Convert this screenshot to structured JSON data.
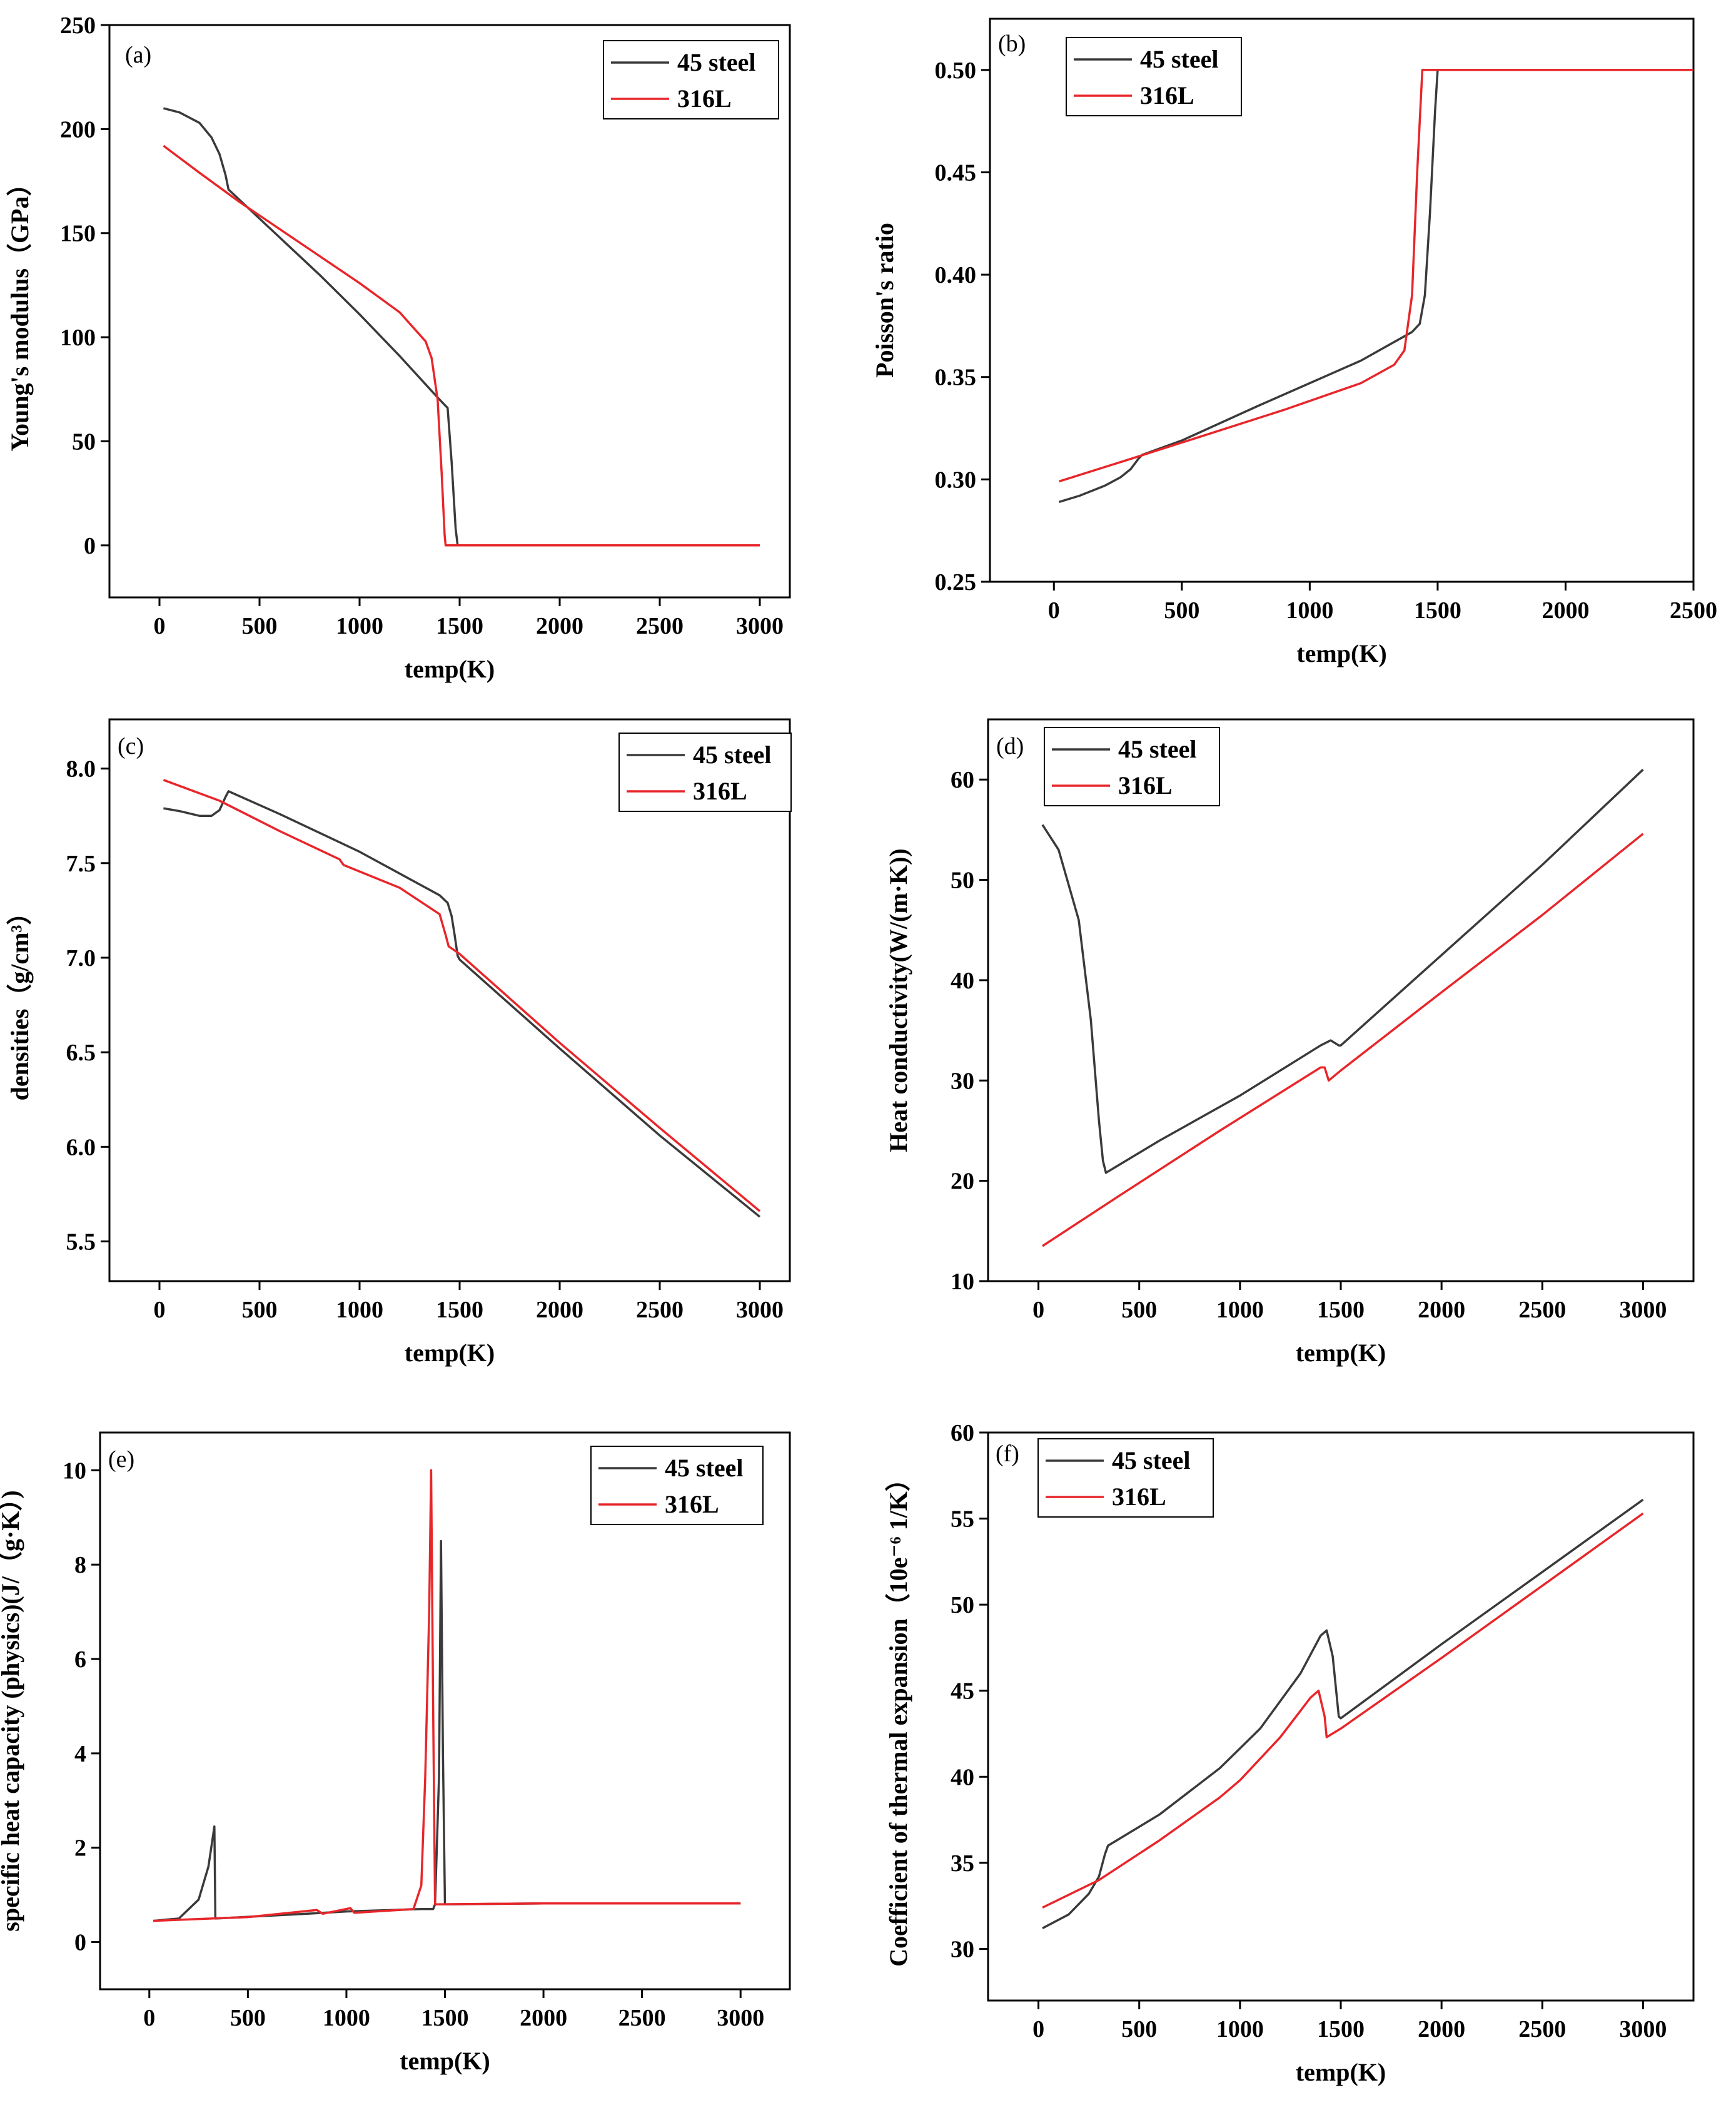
{
  "colors": {
    "series_45_steel": "#3a3a3a",
    "series_316L": "#e8262a"
  },
  "chart_data": [
    {
      "panel": "(a)",
      "type": "line",
      "xlabel": "temp(K)",
      "ylabel": "Young's modulus（GPa）",
      "xlim": [
        -250,
        3150
      ],
      "ylim": [
        -25,
        250
      ],
      "xticks": [
        0,
        500,
        1000,
        1500,
        2000,
        2500,
        3000
      ],
      "xtick_labels": [
        "0",
        "500",
        "1000",
        "1500",
        "2000",
        "2500",
        "3000"
      ],
      "yticks": [
        0,
        50,
        100,
        150,
        200,
        250
      ],
      "ytick_labels": [
        "0",
        "50",
        "100",
        "150",
        "200",
        "250"
      ],
      "legend": "top-right",
      "series": [
        {
          "name": "45 steel",
          "points": [
            [
              20,
              210
            ],
            [
              100,
              208
            ],
            [
              200,
              203
            ],
            [
              260,
              196
            ],
            [
              300,
              188
            ],
            [
              330,
              178
            ],
            [
              345,
              171
            ],
            [
              400,
              166
            ],
            [
              600,
              148
            ],
            [
              800,
              130
            ],
            [
              1000,
              111
            ],
            [
              1200,
              91
            ],
            [
              1400,
              70
            ],
            [
              1440,
              66
            ],
            [
              1460,
              40
            ],
            [
              1480,
              8
            ],
            [
              1490,
              0
            ],
            [
              3000,
              0
            ]
          ]
        },
        {
          "name": "316L",
          "points": [
            [
              20,
              192
            ],
            [
              200,
              179
            ],
            [
              400,
              165
            ],
            [
              600,
              152
            ],
            [
              800,
              139
            ],
            [
              1000,
              126
            ],
            [
              1200,
              112
            ],
            [
              1330,
              98
            ],
            [
              1360,
              90
            ],
            [
              1390,
              70
            ],
            [
              1410,
              35
            ],
            [
              1425,
              5
            ],
            [
              1430,
              0
            ],
            [
              3000,
              0
            ]
          ]
        }
      ]
    },
    {
      "panel": "(b)",
      "type": "line",
      "xlabel": "temp(K)",
      "ylabel": "Poisson's ratio",
      "xlim": [
        -250,
        2500
      ],
      "ylim": [
        0.25,
        0.525
      ],
      "xticks": [
        0,
        500,
        1000,
        1500,
        2000,
        2500
      ],
      "xtick_labels": [
        "0",
        "500",
        "1000",
        "1500",
        "2000",
        "2500"
      ],
      "yticks": [
        0.25,
        0.3,
        0.35,
        0.4,
        0.45,
        0.5
      ],
      "ytick_labels": [
        "0.25",
        "0.30",
        "0.35",
        "0.40",
        "0.45",
        "0.50"
      ],
      "legend": "top-left",
      "series": [
        {
          "name": "45 steel",
          "points": [
            [
              20,
              0.289
            ],
            [
              100,
              0.292
            ],
            [
              200,
              0.297
            ],
            [
              260,
              0.301
            ],
            [
              300,
              0.305
            ],
            [
              330,
              0.31
            ],
            [
              345,
              0.312
            ],
            [
              500,
              0.319
            ],
            [
              800,
              0.336
            ],
            [
              1000,
              0.347
            ],
            [
              1200,
              0.358
            ],
            [
              1400,
              0.372
            ],
            [
              1430,
              0.376
            ],
            [
              1450,
              0.39
            ],
            [
              1470,
              0.43
            ],
            [
              1490,
              0.48
            ],
            [
              1500,
              0.5
            ],
            [
              2500,
              0.5
            ]
          ]
        },
        {
          "name": "316L",
          "points": [
            [
              20,
              0.299
            ],
            [
              300,
              0.31
            ],
            [
              600,
              0.322
            ],
            [
              900,
              0.334
            ],
            [
              1200,
              0.347
            ],
            [
              1330,
              0.356
            ],
            [
              1370,
              0.363
            ],
            [
              1400,
              0.39
            ],
            [
              1420,
              0.45
            ],
            [
              1440,
              0.5
            ],
            [
              2500,
              0.5
            ]
          ]
        }
      ]
    },
    {
      "panel": "(c)",
      "type": "line",
      "xlabel": "temp(K)",
      "ylabel": "densities（g/cm³）",
      "xlim": [
        -250,
        3150
      ],
      "ylim": [
        5.29,
        8.26
      ],
      "xticks": [
        0,
        500,
        1000,
        1500,
        2000,
        2500,
        3000
      ],
      "xtick_labels": [
        "0",
        "500",
        "1000",
        "1500",
        "2000",
        "2500",
        "3000"
      ],
      "yticks": [
        5.5,
        6.0,
        6.5,
        7.0,
        7.5,
        8.0
      ],
      "ytick_labels": [
        "5.5",
        "6.0",
        "6.5",
        "7.0",
        "7.5",
        "8.0"
      ],
      "legend": "top-right",
      "series": [
        {
          "name": "45 steel",
          "points": [
            [
              20,
              7.79
            ],
            [
              100,
              7.775
            ],
            [
              200,
              7.75
            ],
            [
              260,
              7.75
            ],
            [
              300,
              7.78
            ],
            [
              330,
              7.85
            ],
            [
              345,
              7.88
            ],
            [
              600,
              7.76
            ],
            [
              1000,
              7.56
            ],
            [
              1400,
              7.33
            ],
            [
              1440,
              7.29
            ],
            [
              1460,
              7.22
            ],
            [
              1475,
              7.12
            ],
            [
              1490,
              7.01
            ],
            [
              1500,
              6.99
            ],
            [
              2000,
              6.52
            ],
            [
              2500,
              6.06
            ],
            [
              3000,
              5.63
            ]
          ]
        },
        {
          "name": "316L",
          "points": [
            [
              20,
              7.94
            ],
            [
              300,
              7.83
            ],
            [
              600,
              7.67
            ],
            [
              900,
              7.52
            ],
            [
              920,
              7.49
            ],
            [
              1200,
              7.37
            ],
            [
              1400,
              7.23
            ],
            [
              1430,
              7.12
            ],
            [
              1445,
              7.06
            ],
            [
              1500,
              7.02
            ],
            [
              2000,
              6.55
            ],
            [
              2500,
              6.1
            ],
            [
              3000,
              5.66
            ]
          ]
        }
      ]
    },
    {
      "panel": "(d)",
      "type": "line",
      "xlabel": "temp(K)",
      "ylabel": "Heat conductivity(W/(m·K))",
      "xlim": [
        -250,
        3250
      ],
      "ylim": [
        10,
        66
      ],
      "xticks": [
        0,
        500,
        1000,
        1500,
        2000,
        2500,
        3000
      ],
      "xtick_labels": [
        "0",
        "500",
        "1000",
        "1500",
        "2000",
        "2500",
        "3000"
      ],
      "yticks": [
        10,
        20,
        30,
        40,
        50,
        60
      ],
      "ytick_labels": [
        "10",
        "20",
        "30",
        "40",
        "50",
        "60"
      ],
      "legend": "top-left",
      "series": [
        {
          "name": "45 steel",
          "points": [
            [
              20,
              55.5
            ],
            [
              100,
              53
            ],
            [
              200,
              46
            ],
            [
              260,
              36
            ],
            [
              300,
              26
            ],
            [
              320,
              22
            ],
            [
              335,
              20.8
            ],
            [
              600,
              24
            ],
            [
              1000,
              28.5
            ],
            [
              1400,
              33.5
            ],
            [
              1450,
              34
            ],
            [
              1490,
              33.5
            ],
            [
              1500,
              33.5
            ],
            [
              2000,
              42.5
            ],
            [
              2500,
              51.5
            ],
            [
              3000,
              61
            ]
          ]
        },
        {
          "name": "316L",
          "points": [
            [
              20,
              13.5
            ],
            [
              400,
              18.5
            ],
            [
              900,
              25
            ],
            [
              1400,
              31.3
            ],
            [
              1420,
              31.3
            ],
            [
              1440,
              30
            ],
            [
              1500,
              31
            ],
            [
              2000,
              38.8
            ],
            [
              2500,
              46.5
            ],
            [
              3000,
              54.6
            ]
          ]
        }
      ]
    },
    {
      "panel": "(e)",
      "type": "line",
      "xlabel": "temp(K)",
      "ylabel": "specific heat capacity (physics)(J/（g·K）)",
      "xlim": [
        -250,
        3250
      ],
      "ylim": [
        -1,
        10.8
      ],
      "xticks": [
        0,
        500,
        1000,
        1500,
        2000,
        2500,
        3000
      ],
      "xtick_labels": [
        "0",
        "500",
        "1000",
        "1500",
        "2000",
        "2500",
        "3000"
      ],
      "yticks": [
        0,
        2,
        4,
        6,
        8,
        10
      ],
      "ytick_labels": [
        "0",
        "2",
        "4",
        "6",
        "8",
        "10"
      ],
      "legend": "top-right",
      "series": [
        {
          "name": "45 steel",
          "points": [
            [
              20,
              0.45
            ],
            [
              150,
              0.5
            ],
            [
              250,
              0.9
            ],
            [
              300,
              1.6
            ],
            [
              330,
              2.45
            ],
            [
              335,
              0.5
            ],
            [
              800,
              0.6
            ],
            [
              1000,
              0.65
            ],
            [
              1380,
              0.7
            ],
            [
              1440,
              0.7
            ],
            [
              1450,
              0.8
            ],
            [
              1470,
              3.5
            ],
            [
              1480,
              8.5
            ],
            [
              1490,
              4
            ],
            [
              1500,
              0.8
            ],
            [
              2000,
              0.82
            ],
            [
              3000,
              0.82
            ]
          ]
        },
        {
          "name": "316L",
          "points": [
            [
              20,
              0.45
            ],
            [
              500,
              0.53
            ],
            [
              850,
              0.68
            ],
            [
              880,
              0.6
            ],
            [
              1020,
              0.72
            ],
            [
              1040,
              0.62
            ],
            [
              1340,
              0.7
            ],
            [
              1380,
              1.2
            ],
            [
              1400,
              3.5
            ],
            [
              1420,
              7
            ],
            [
              1430,
              10
            ],
            [
              1440,
              5
            ],
            [
              1450,
              0.8
            ],
            [
              2000,
              0.82
            ],
            [
              3000,
              0.82
            ]
          ]
        }
      ]
    },
    {
      "panel": "(f)",
      "type": "line",
      "xlabel": "temp(K)",
      "ylabel": "Coefficient of thermal expansion（10e⁻⁶ 1/K）",
      "xlim": [
        -250,
        3250
      ],
      "ylim": [
        27,
        60
      ],
      "xticks": [
        0,
        500,
        1000,
        1500,
        2000,
        2500,
        3000
      ],
      "xtick_labels": [
        "0",
        "500",
        "1000",
        "1500",
        "2000",
        "2500",
        "3000"
      ],
      "yticks": [
        30,
        35,
        40,
        45,
        50,
        55,
        60
      ],
      "ytick_labels": [
        "30",
        "35",
        "40",
        "45",
        "50",
        "55",
        "60"
      ],
      "legend": "top-left",
      "series": [
        {
          "name": "45 steel",
          "points": [
            [
              20,
              31.2
            ],
            [
              150,
              32
            ],
            [
              250,
              33.2
            ],
            [
              300,
              34.2
            ],
            [
              330,
              35.5
            ],
            [
              345,
              36
            ],
            [
              600,
              37.8
            ],
            [
              900,
              40.5
            ],
            [
              1100,
              42.8
            ],
            [
              1300,
              46
            ],
            [
              1400,
              48.2
            ],
            [
              1430,
              48.5
            ],
            [
              1460,
              47
            ],
            [
              1490,
              43.5
            ],
            [
              1500,
              43.4
            ],
            [
              2000,
              47.7
            ],
            [
              2500,
              51.9
            ],
            [
              3000,
              56.1
            ]
          ]
        },
        {
          "name": "316L",
          "points": [
            [
              20,
              32.4
            ],
            [
              300,
              34
            ],
            [
              600,
              36.3
            ],
            [
              900,
              38.8
            ],
            [
              1000,
              39.8
            ],
            [
              1200,
              42.3
            ],
            [
              1350,
              44.6
            ],
            [
              1390,
              45
            ],
            [
              1420,
              43.5
            ],
            [
              1430,
              42.3
            ],
            [
              1500,
              42.8
            ],
            [
              2000,
              46.9
            ],
            [
              2500,
              51.1
            ],
            [
              3000,
              55.3
            ]
          ]
        }
      ]
    }
  ]
}
